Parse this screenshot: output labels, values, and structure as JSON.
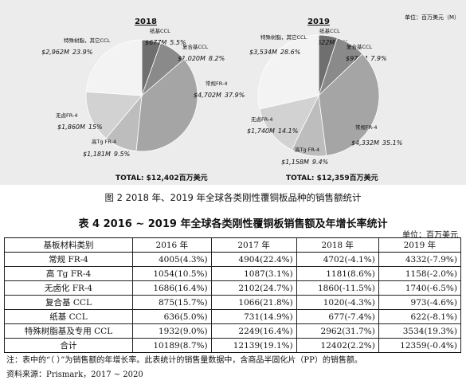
{
  "chart_data": [
    {
      "type": "pie",
      "title": "2018",
      "unit": "",
      "total_label": "TOTAL: $12,402百万美元",
      "slices": [
        {
          "name": "纸基CCL",
          "value_label": "$677M",
          "percent": 5.5,
          "color": "#6f6f6f"
        },
        {
          "name": "复合基CCL",
          "value_label": "$1,020M",
          "percent": 8.2,
          "color": "#8a8a8a"
        },
        {
          "name": "常规FR-4",
          "value_label": "$4,702M",
          "percent": 37.9,
          "color": "#a5a5a5"
        },
        {
          "name": "高Tg FR-4",
          "value_label": "$1,181M",
          "percent": 9.5,
          "color": "#bdbdbd"
        },
        {
          "name": "无卤FR-4",
          "value_label": "$1,860M",
          "percent": 15,
          "color": "#d2d2d2"
        },
        {
          "name": "特殊树脂，其它CCL",
          "value_label": "$2,962M",
          "percent": 23.9,
          "color": "#f3f3f3"
        }
      ]
    },
    {
      "type": "pie",
      "title": "2019",
      "unit": "单位：百万美元（M）",
      "total_label": "TOTAL: $12,359百万美元",
      "slices": [
        {
          "name": "纸基CCL",
          "value_label": "$622M",
          "percent": 5.0,
          "color": "#6f6f6f"
        },
        {
          "name": "复合基CCL",
          "value_label": "$973M",
          "percent": 7.9,
          "color": "#8a8a8a"
        },
        {
          "name": "常规FR-4",
          "value_label": "$4,332M",
          "percent": 35.1,
          "color": "#a5a5a5"
        },
        {
          "name": "高Tg FR-4",
          "value_label": "$1,158M",
          "percent": 9.4,
          "color": "#bdbdbd"
        },
        {
          "name": "无卤FR-4",
          "value_label": "$1,740M",
          "percent": 14.1,
          "color": "#d2d2d2"
        },
        {
          "name": "特殊树脂，其它CCL",
          "value_label": "$3,534M",
          "percent": 28.6,
          "color": "#f3f3f3"
        }
      ]
    },
    {
      "type": "table",
      "title": "表 4 2016 ~ 2019 年全球各类刚性覆铜板销售额及年增长率统计",
      "unit": "单位：百万美元",
      "columns": [
        "基板材料类别",
        "2016 年",
        "2017 年",
        "2018 年",
        "2019 年"
      ],
      "rows": [
        [
          "常规 FR-4",
          "4005(4.3%)",
          "4904(22.4%)",
          "4702(-4.1%)",
          "4332(-7.9%)"
        ],
        [
          "高 Tg FR-4",
          "1054(10.5%)",
          "1087(3.1%)",
          "1181(8.6%)",
          "1158(-2.0%)"
        ],
        [
          "无卤化 FR-4",
          "1686(16.4%)",
          "2102(24.7%)",
          "1860(-11.5%)",
          "1740(-6.5%)"
        ],
        [
          "复合基 CCL",
          "875(15.7%)",
          "1066(21.8%)",
          "1020(-4.3%)",
          "973(-4.6%)"
        ],
        [
          "纸基 CCL",
          "636(5.0%)",
          "731(14.9%)",
          "677(-7.4%)",
          "622(-8.1%)"
        ],
        [
          "特殊树脂基及专用 CCL",
          "1932(9.0%)",
          "2249(16.4%)",
          "2962(31.7%)",
          "3534(19.3%)"
        ],
        [
          "合计",
          "10189(8.7%)",
          "12139(19.1%)",
          "12402(2.2%)",
          "12359(-0.4%)"
        ]
      ]
    }
  ],
  "figure_caption": "图 2 2018 年、2019 年全球各类刚性覆铜板品种的销售额统计",
  "notes": {
    "note": "注：表中的“（ ）”为销售额的年增长率。此表统计的销售量数据中，含商品半固化片（PP）的销售额。",
    "source": "资料来源：Prismark，2017 ~ 2020"
  }
}
